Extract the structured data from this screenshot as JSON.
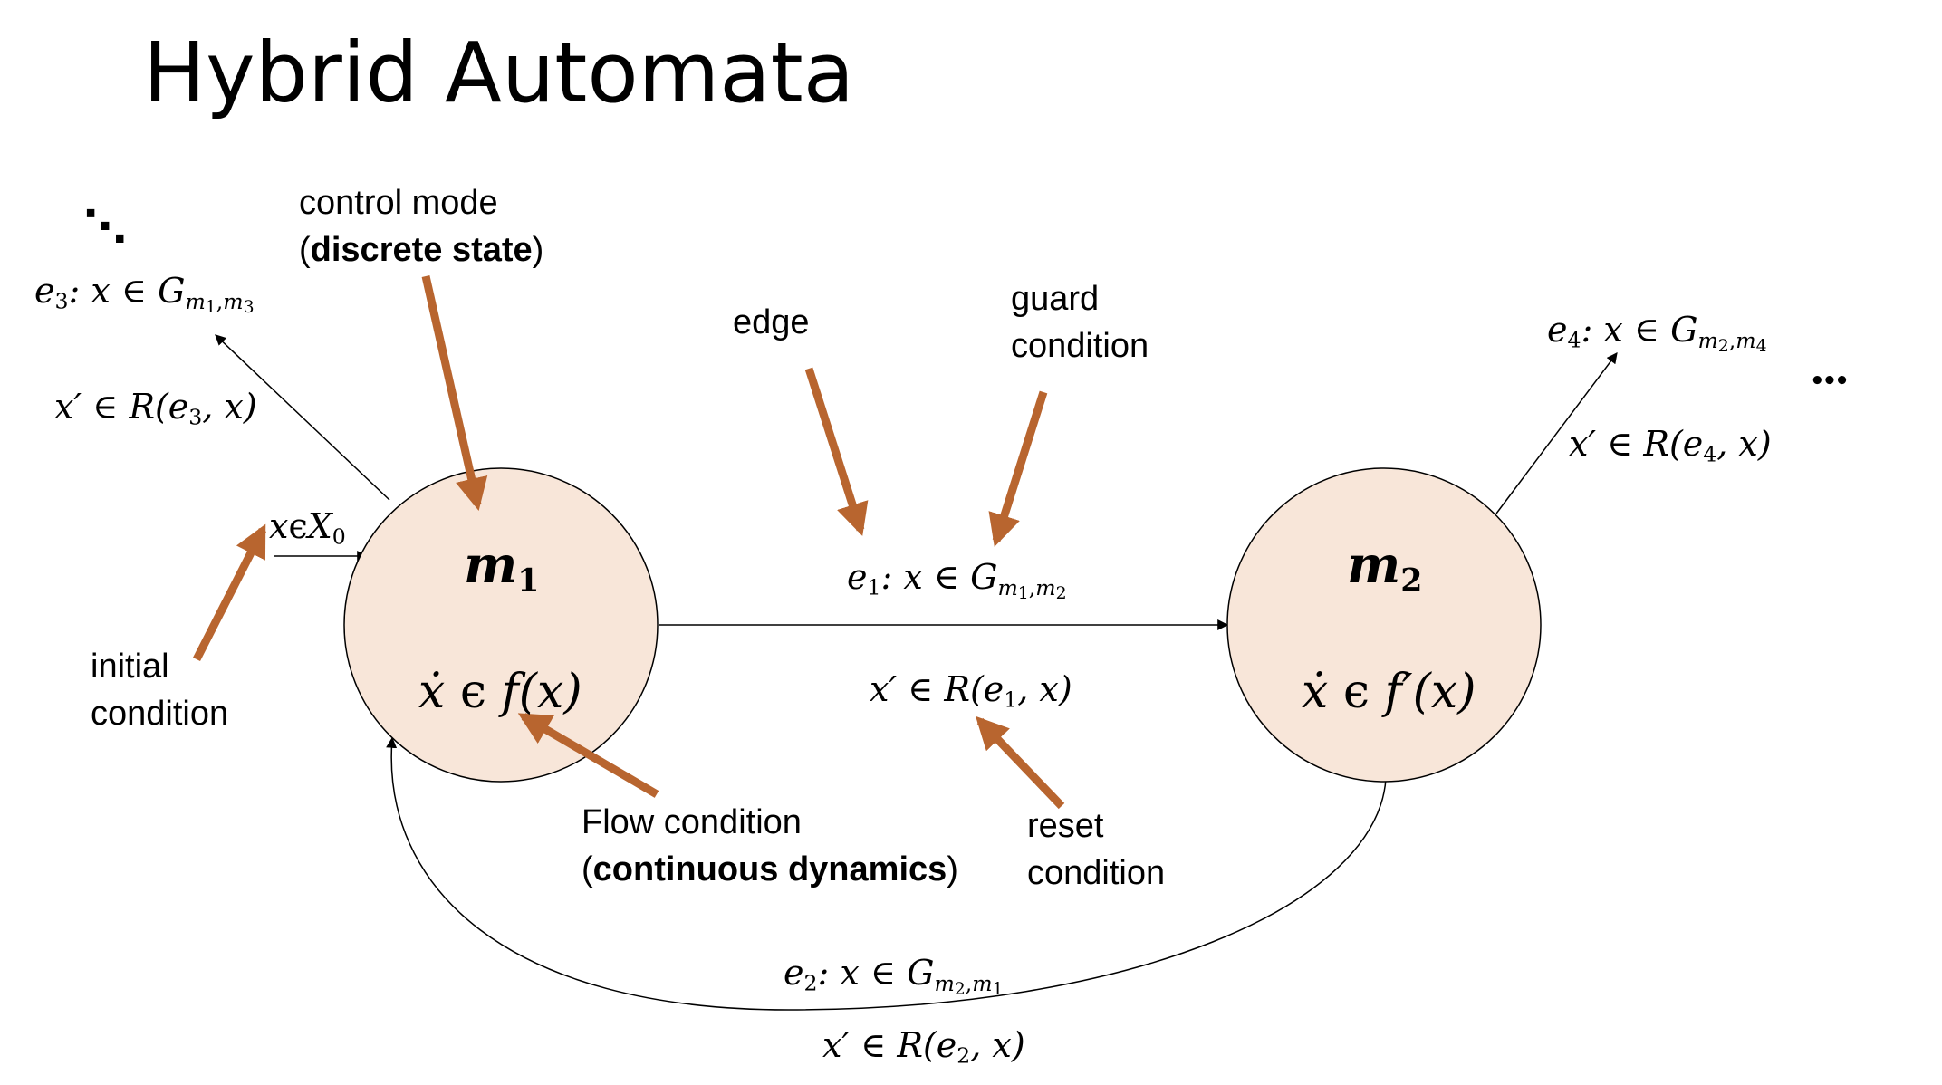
{
  "title": "Hybrid Automata",
  "colors": {
    "node_fill": "#f8e6d9",
    "annotation_arrow": "#b8652f",
    "edge": "#000000"
  },
  "annotations": {
    "control_mode_line1": "control mode",
    "control_mode_prefix": "(",
    "control_mode_bold": "discrete state",
    "control_mode_suffix": ")",
    "edge": "edge",
    "guard_line1": "guard",
    "guard_line2": "condition",
    "initial_line1": "initial",
    "initial_line2": "condition",
    "flow_line1": "Flow condition",
    "flow_prefix": "(",
    "flow_bold": "continuous dynamics",
    "flow_suffix": ")",
    "reset_line1": "reset",
    "reset_line2": "condition"
  },
  "nodes": {
    "m1": {
      "name": "m",
      "name_sub": "1",
      "flow_dot": "ẋ",
      "flow_rel": " ϵ ",
      "flow_f": "f",
      "flow_arg": "(x)"
    },
    "m2": {
      "name": "m",
      "name_sub": "2",
      "flow_dot": "ẋ",
      "flow_rel": " ϵ ",
      "flow_f": "f′",
      "flow_arg": "(x)"
    }
  },
  "initial_set": {
    "x": "x",
    "rel": "ϵ",
    "X": "X",
    "sub": "0"
  },
  "edges": {
    "e1": {
      "e": "e",
      "e_sub": "1",
      "guard_mid": ": x ∈ G",
      "g_sub_m_a": "m",
      "g_sub_a": "1",
      "g_sub_m_b": "m",
      "g_sub_b": "2",
      "reset_pre": "x′ ∈ R(e",
      "reset_sub": "1",
      "reset_post": ", x)"
    },
    "e2": {
      "e": "e",
      "e_sub": "2",
      "guard_mid": ":  x  ∈ G",
      "g_sub_m_a": "m",
      "g_sub_a": "2",
      "g_sub_m_b": "m",
      "g_sub_b": "1",
      "reset_pre": "x′ ∈ R(e",
      "reset_sub": "2",
      "reset_post": ", x)"
    },
    "e3": {
      "e": "e",
      "e_sub": "3",
      "guard_mid": ": x ∈ G",
      "g_sub_m_a": "m",
      "g_sub_a": "1",
      "g_sub_m_b": "m",
      "g_sub_b": "3",
      "reset_pre": "x′ ∈ R(e",
      "reset_sub": "3",
      "reset_post": ", x)"
    },
    "e4": {
      "e": "e",
      "e_sub": "4",
      "guard_mid": ": x ∈ G",
      "g_sub_m_a": "m",
      "g_sub_a": "2",
      "g_sub_m_b": "m",
      "g_sub_b": "4",
      "reset_pre": "x′ ∈ R(e",
      "reset_sub": "4",
      "reset_post": ", x)"
    }
  },
  "ellipsis_topleft": "⋱",
  "ellipsis_right": "•••",
  "comma": ","
}
